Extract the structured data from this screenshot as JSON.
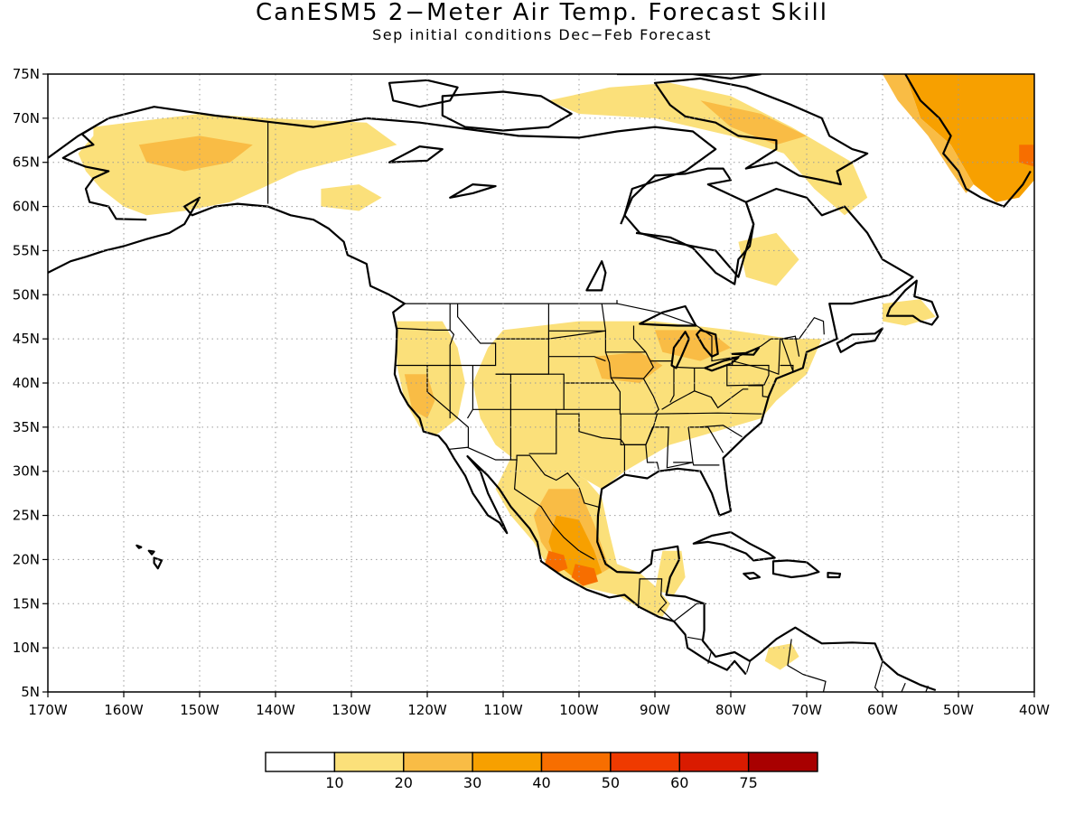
{
  "title": "CanESM5 2−Meter Air Temp. Forecast Skill",
  "subtitle": "Sep initial conditions  Dec−Feb Forecast",
  "map": {
    "lon_range": [
      -170,
      -40
    ],
    "lat_range": [
      5,
      75
    ],
    "grid": true,
    "lat_ticks": [
      {
        "v": 75,
        "t": "75N"
      },
      {
        "v": 70,
        "t": "70N"
      },
      {
        "v": 65,
        "t": "65N"
      },
      {
        "v": 60,
        "t": "60N"
      },
      {
        "v": 55,
        "t": "55N"
      },
      {
        "v": 50,
        "t": "50N"
      },
      {
        "v": 45,
        "t": "45N"
      },
      {
        "v": 40,
        "t": "40N"
      },
      {
        "v": 35,
        "t": "35N"
      },
      {
        "v": 30,
        "t": "30N"
      },
      {
        "v": 25,
        "t": "25N"
      },
      {
        "v": 20,
        "t": "20N"
      },
      {
        "v": 15,
        "t": "15N"
      },
      {
        "v": 10,
        "t": "10N"
      },
      {
        "v": 5,
        "t": "5N"
      }
    ],
    "lon_ticks": [
      {
        "v": -170,
        "t": "170W"
      },
      {
        "v": -160,
        "t": "160W"
      },
      {
        "v": -150,
        "t": "150W"
      },
      {
        "v": -140,
        "t": "140W"
      },
      {
        "v": -130,
        "t": "130W"
      },
      {
        "v": -120,
        "t": "120W"
      },
      {
        "v": -110,
        "t": "110W"
      },
      {
        "v": -100,
        "t": "100W"
      },
      {
        "v": -90,
        "t": "90W"
      },
      {
        "v": -80,
        "t": "80W"
      },
      {
        "v": -70,
        "t": "70W"
      },
      {
        "v": -60,
        "t": "60W"
      },
      {
        "v": -50,
        "t": "50W"
      },
      {
        "v": -40,
        "t": "40W"
      }
    ],
    "skill_regions": [
      {
        "name": "alaska",
        "level": 1,
        "pts": [
          [
            -164,
            69
          ],
          [
            -150,
            70.5
          ],
          [
            -141,
            70
          ],
          [
            -128,
            69.5
          ],
          [
            -124,
            67
          ],
          [
            -128,
            66
          ],
          [
            -137,
            64
          ],
          [
            -142,
            62
          ],
          [
            -146,
            60.5
          ],
          [
            -152,
            59.5
          ],
          [
            -157,
            59
          ],
          [
            -160,
            60
          ],
          [
            -163,
            62
          ],
          [
            -165,
            64
          ],
          [
            -166,
            66
          ],
          [
            -164,
            68
          ]
        ]
      },
      {
        "name": "alaska-core",
        "level": 2,
        "pts": [
          [
            -158,
            67
          ],
          [
            -150,
            68
          ],
          [
            -143,
            67
          ],
          [
            -146,
            65
          ],
          [
            -152,
            64
          ],
          [
            -157,
            65
          ]
        ]
      },
      {
        "name": "yukon-patch",
        "level": 1,
        "pts": [
          [
            -134,
            62
          ],
          [
            -129,
            62.5
          ],
          [
            -126,
            61
          ],
          [
            -129,
            59.5
          ],
          [
            -134,
            60
          ]
        ]
      },
      {
        "name": "canadian-arctic",
        "level": 1,
        "pts": [
          [
            -104,
            72
          ],
          [
            -96,
            73.5
          ],
          [
            -88,
            74
          ],
          [
            -80,
            72.5
          ],
          [
            -72,
            69
          ],
          [
            -64,
            65
          ],
          [
            -62,
            61
          ],
          [
            -65,
            59
          ],
          [
            -69,
            62
          ],
          [
            -73,
            66
          ],
          [
            -80,
            68
          ],
          [
            -90,
            70
          ],
          [
            -100,
            70.5
          ]
        ]
      },
      {
        "name": "canadian-arctic-core",
        "level": 2,
        "pts": [
          [
            -84,
            72
          ],
          [
            -76,
            70.5
          ],
          [
            -70,
            68
          ],
          [
            -74,
            67
          ],
          [
            -80,
            69
          ]
        ]
      },
      {
        "name": "hudson-bay-east",
        "level": 1,
        "pts": [
          [
            -79,
            56
          ],
          [
            -74,
            57
          ],
          [
            -71,
            54
          ],
          [
            -74,
            51
          ],
          [
            -78,
            52
          ]
        ]
      },
      {
        "name": "greenland",
        "level": 3,
        "pts": [
          [
            -40,
            75
          ],
          [
            -57,
            75
          ],
          [
            -55,
            70
          ],
          [
            -51,
            67
          ],
          [
            -48,
            62.5
          ],
          [
            -45,
            60.5
          ],
          [
            -42,
            61
          ],
          [
            -40,
            63
          ]
        ]
      },
      {
        "name": "greenland-edge",
        "level": 2,
        "pts": [
          [
            -57,
            75
          ],
          [
            -60,
            75
          ],
          [
            -58,
            72
          ],
          [
            -54,
            68
          ],
          [
            -51,
            64
          ],
          [
            -49,
            61.5
          ],
          [
            -48,
            62.5
          ],
          [
            -51,
            67
          ],
          [
            -55,
            70
          ]
        ]
      },
      {
        "name": "greenland-east",
        "level": 4,
        "pts": [
          [
            -40,
            67
          ],
          [
            -42,
            67
          ],
          [
            -42,
            65
          ],
          [
            -40,
            64.5
          ]
        ]
      },
      {
        "name": "newfoundland",
        "level": 1,
        "pts": [
          [
            -60,
            49
          ],
          [
            -55,
            49.5
          ],
          [
            -53,
            47.5
          ],
          [
            -57,
            46.5
          ],
          [
            -60,
            47
          ]
        ]
      },
      {
        "name": "us-pacific-west",
        "level": 1,
        "pts": [
          [
            -124,
            47
          ],
          [
            -118,
            47
          ],
          [
            -116,
            44
          ],
          [
            -115,
            40
          ],
          [
            -116,
            36
          ],
          [
            -119,
            34
          ],
          [
            -121,
            35
          ],
          [
            -123,
            38
          ],
          [
            -124,
            42
          ]
        ]
      },
      {
        "name": "california-core",
        "level": 2,
        "pts": [
          [
            -123,
            41
          ],
          [
            -120,
            41
          ],
          [
            -119,
            38
          ],
          [
            -120,
            36
          ],
          [
            -122,
            37
          ]
        ]
      },
      {
        "name": "us-central-east",
        "level": 1,
        "pts": [
          [
            -110,
            46
          ],
          [
            -100,
            47
          ],
          [
            -90,
            47
          ],
          [
            -80,
            46
          ],
          [
            -72,
            45
          ],
          [
            -68,
            45
          ],
          [
            -70,
            41
          ],
          [
            -74,
            38
          ],
          [
            -76,
            36
          ],
          [
            -80,
            35
          ],
          [
            -88,
            33
          ],
          [
            -94,
            30
          ],
          [
            -97,
            28
          ],
          [
            -100,
            29.5
          ],
          [
            -104,
            30
          ],
          [
            -108,
            31
          ],
          [
            -111,
            33
          ],
          [
            -113,
            36
          ],
          [
            -114,
            40
          ],
          [
            -112,
            44
          ]
        ]
      },
      {
        "name": "central-core",
        "level": 2,
        "pts": [
          [
            -98,
            43
          ],
          [
            -92,
            43.5
          ],
          [
            -89,
            42
          ],
          [
            -92,
            40
          ],
          [
            -97,
            40.5
          ]
        ]
      },
      {
        "name": "great-lakes-core",
        "level": 2,
        "pts": [
          [
            -90,
            46
          ],
          [
            -83,
            46
          ],
          [
            -80,
            44
          ],
          [
            -84,
            42.5
          ],
          [
            -89,
            43.5
          ]
        ]
      },
      {
        "name": "mexico",
        "level": 1,
        "pts": [
          [
            -109,
            31.5
          ],
          [
            -104,
            31.5
          ],
          [
            -99,
            29
          ],
          [
            -97,
            27
          ],
          [
            -96,
            23
          ],
          [
            -95,
            19.5
          ],
          [
            -92,
            18.5
          ],
          [
            -90,
            17
          ],
          [
            -88,
            15
          ],
          [
            -89,
            13.5
          ],
          [
            -92,
            14.5
          ],
          [
            -95,
            16
          ],
          [
            -100,
            17
          ],
          [
            -104,
            19
          ],
          [
            -106,
            22
          ],
          [
            -109,
            25
          ],
          [
            -111,
            28
          ]
        ]
      },
      {
        "name": "mexico-core",
        "level": 2,
        "pts": [
          [
            -104,
            28
          ],
          [
            -100,
            28
          ],
          [
            -98,
            24
          ],
          [
            -96,
            19
          ],
          [
            -99,
            17.5
          ],
          [
            -103,
            19.5
          ],
          [
            -105,
            22
          ],
          [
            -106,
            25
          ]
        ]
      },
      {
        "name": "mexico-center",
        "level": 3,
        "pts": [
          [
            -103,
            25
          ],
          [
            -100,
            24.5
          ],
          [
            -98,
            21
          ],
          [
            -97,
            18.5
          ],
          [
            -100,
            17.5
          ],
          [
            -103,
            19.5
          ],
          [
            -104,
            22
          ]
        ]
      },
      {
        "name": "mexico-hot-west",
        "level": 4,
        "pts": [
          [
            -104,
            21
          ],
          [
            -102,
            20.5
          ],
          [
            -101.5,
            19
          ],
          [
            -103,
            18.5
          ],
          [
            -104.5,
            19.5
          ]
        ]
      },
      {
        "name": "mexico-hot-east",
        "level": 4,
        "pts": [
          [
            -100.5,
            19.5
          ],
          [
            -98,
            19
          ],
          [
            -97.5,
            17.5
          ],
          [
            -99.5,
            17
          ],
          [
            -101,
            18
          ]
        ]
      },
      {
        "name": "central-america",
        "level": 1,
        "pts": [
          [
            -89,
            21
          ],
          [
            -86.5,
            21
          ],
          [
            -86,
            18
          ],
          [
            -87.5,
            16
          ],
          [
            -90,
            16.5
          ]
        ]
      },
      {
        "name": "caribbean-col",
        "level": 1,
        "pts": [
          [
            -75,
            10
          ],
          [
            -72,
            10.5
          ],
          [
            -71,
            9
          ],
          [
            -73.5,
            7.5
          ],
          [
            -75.5,
            8.5
          ]
        ]
      }
    ],
    "colorbar": {
      "boundary_labels": [
        "10",
        "20",
        "30",
        "40",
        "50",
        "60",
        "75"
      ],
      "colors": [
        "#ffffff",
        "#fbe07a",
        "#f9bc45",
        "#f7a000",
        "#f76e00",
        "#ef3a00",
        "#d91b00",
        "#a80000"
      ]
    },
    "land_color": "#ffffff",
    "ocean_color": "#ffffff"
  }
}
